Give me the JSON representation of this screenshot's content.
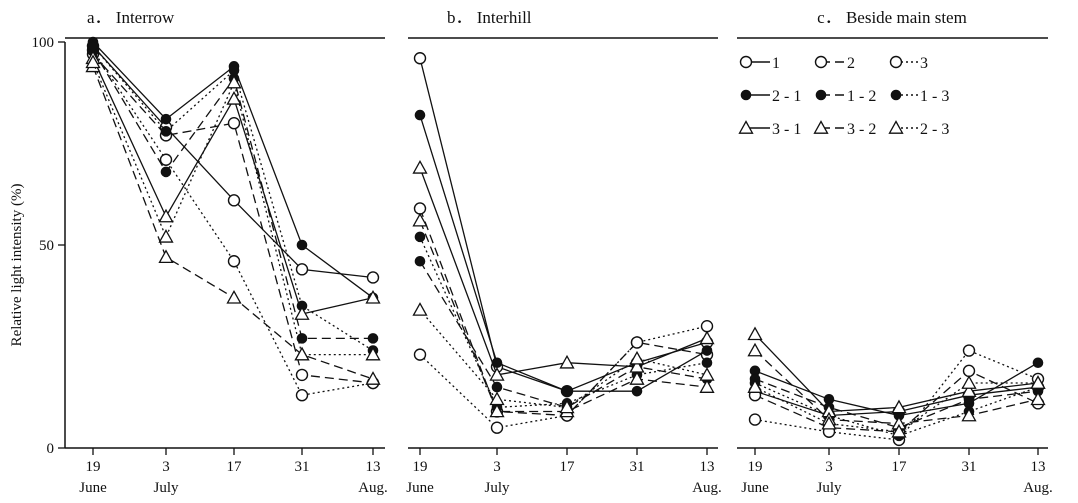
{
  "chart_data": {
    "type": "line",
    "ylabel": "Relative light intensity (%)",
    "ylim": [
      0,
      100
    ],
    "yticks": [
      0,
      50,
      100
    ],
    "x_ticks": [
      {
        "day": "19",
        "month": "June"
      },
      {
        "day": "3",
        "month": "July"
      },
      {
        "day": "17",
        "month": ""
      },
      {
        "day": "31",
        "month": ""
      },
      {
        "day": "13",
        "month": "Aug."
      }
    ],
    "legend": {
      "placement": "top-right of panel c",
      "entries": [
        {
          "name": "1",
          "marker": "open-circle",
          "line": "solid"
        },
        {
          "name": "2",
          "marker": "open-circle",
          "line": "dashed"
        },
        {
          "name": "3",
          "marker": "open-circle",
          "line": "dotted"
        },
        {
          "name": "2 - 1",
          "marker": "filled-circle",
          "line": "solid"
        },
        {
          "name": "1 - 2",
          "marker": "filled-circle",
          "line": "dashed"
        },
        {
          "name": "1 - 3",
          "marker": "filled-circle",
          "line": "dotted"
        },
        {
          "name": "3 - 1",
          "marker": "open-triangle",
          "line": "solid"
        },
        {
          "name": "3 - 2",
          "marker": "open-triangle",
          "line": "dashed"
        },
        {
          "name": "2 - 3",
          "marker": "open-triangle",
          "line": "dotted"
        }
      ]
    },
    "panels": [
      {
        "title": "a． Interrow",
        "series": [
          {
            "name": "1",
            "values": [
              99,
              79,
              61,
              44,
              42
            ]
          },
          {
            "name": "2",
            "values": [
              97,
              77,
              80,
              18,
              16
            ]
          },
          {
            "name": "3",
            "values": [
              98,
              71,
              46,
              13,
              16
            ]
          },
          {
            "name": "2 - 1",
            "values": [
              100,
              81,
              94,
              50,
              37
            ]
          },
          {
            "name": "1 - 2",
            "values": [
              98,
              68,
              91,
              27,
              27
            ]
          },
          {
            "name": "1 - 3",
            "values": [
              99,
              78,
              93,
              35,
              24
            ]
          },
          {
            "name": "3 - 1",
            "values": [
              96,
              57,
              86,
              33,
              37
            ]
          },
          {
            "name": "3 - 2",
            "values": [
              94,
              47,
              37,
              23,
              17
            ]
          },
          {
            "name": "2 - 3",
            "values": [
              95,
              52,
              90,
              23,
              23
            ]
          }
        ]
      },
      {
        "title": "b． Interhill",
        "series": [
          {
            "name": "1",
            "values": [
              96,
              20,
              14,
              21,
              26
            ]
          },
          {
            "name": "2",
            "values": [
              59,
              9,
              8,
              26,
              23
            ]
          },
          {
            "name": "3",
            "values": [
              23,
              5,
              8,
              26,
              30
            ]
          },
          {
            "name": "2 - 1",
            "values": [
              82,
              21,
              14,
              14,
              24
            ]
          },
          {
            "name": "1 - 2",
            "values": [
              46,
              15,
              10,
              20,
              17
            ]
          },
          {
            "name": "1 - 3",
            "values": [
              52,
              10,
              11,
              18,
              21
            ]
          },
          {
            "name": "3 - 1",
            "values": [
              69,
              18,
              21,
              20,
              27
            ]
          },
          {
            "name": "3 - 2",
            "values": [
              56,
              9,
              9,
              17,
              15
            ]
          },
          {
            "name": "2 - 3",
            "values": [
              34,
              12,
              10,
              22,
              18
            ]
          }
        ]
      },
      {
        "title": "c． Beside main stem",
        "series": [
          {
            "name": "1",
            "values": [
              14,
              8,
              9,
              13,
              15
            ]
          },
          {
            "name": "2",
            "values": [
              13,
              5,
              4,
              19,
              11
            ]
          },
          {
            "name": "3",
            "values": [
              7,
              4,
              2,
              24,
              17
            ]
          },
          {
            "name": "2 - 1",
            "values": [
              19,
              12,
              8,
              11,
              21
            ]
          },
          {
            "name": "1 - 2",
            "values": [
              17,
              10,
              5,
              12,
              14
            ]
          },
          {
            "name": "1 - 3",
            "values": [
              16,
              8,
              3,
              9,
              15
            ]
          },
          {
            "name": "3 - 1",
            "values": [
              28,
              9,
              10,
              14,
              16
            ]
          },
          {
            "name": "3 - 2",
            "values": [
              24,
              7,
              6,
              8,
              12
            ]
          },
          {
            "name": "2 - 3",
            "values": [
              15,
              6,
              4,
              16,
              16
            ]
          }
        ]
      }
    ]
  }
}
